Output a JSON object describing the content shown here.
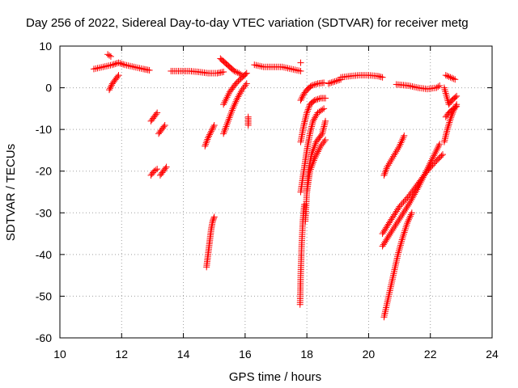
{
  "chart_data": {
    "type": "scatter",
    "title": "Day 256 of 2022, Sidereal Day-to-day VTEC variation (SDTVAR) for receiver metg",
    "xlabel": "GPS time / hours",
    "ylabel": "SDTVAR / TECUs",
    "xlim": [
      10,
      24
    ],
    "ylim": [
      -60,
      10
    ],
    "xticks": [
      10,
      12,
      14,
      16,
      18,
      20,
      22,
      24
    ],
    "yticks": [
      10,
      0,
      -10,
      -20,
      -30,
      -40,
      -50,
      -60
    ],
    "grid": true,
    "marker": "+",
    "color": "#ff0000",
    "segments": [
      {
        "name": "daytime-band-1",
        "points": [
          [
            11.1,
            4.5
          ],
          [
            11.4,
            5.0
          ],
          [
            11.7,
            5.5
          ],
          [
            11.9,
            6.0
          ],
          [
            12.1,
            5.5
          ],
          [
            12.4,
            5.0
          ],
          [
            12.7,
            4.5
          ],
          [
            12.9,
            4.2
          ]
        ]
      },
      {
        "name": "early-spike",
        "points": [
          [
            11.55,
            8.0
          ],
          [
            11.65,
            7.5
          ]
        ]
      },
      {
        "name": "early-dip",
        "points": [
          [
            11.6,
            -0.5
          ],
          [
            11.7,
            1.0
          ],
          [
            11.8,
            2.0
          ],
          [
            11.9,
            3.0
          ]
        ]
      },
      {
        "name": "arc-13a",
        "points": [
          [
            12.95,
            -8.0
          ],
          [
            13.05,
            -7.0
          ],
          [
            13.15,
            -6.0
          ]
        ]
      },
      {
        "name": "arc-13b",
        "points": [
          [
            13.2,
            -11.0
          ],
          [
            13.3,
            -10.0
          ],
          [
            13.4,
            -9.0
          ]
        ]
      },
      {
        "name": "arc-13c",
        "points": [
          [
            12.95,
            -21.0
          ],
          [
            13.05,
            -20.0
          ],
          [
            13.15,
            -19.5
          ]
        ]
      },
      {
        "name": "arc-13d",
        "points": [
          [
            13.25,
            -21.0
          ],
          [
            13.35,
            -20.0
          ],
          [
            13.45,
            -19.0
          ]
        ]
      },
      {
        "name": "daytime-band-2",
        "points": [
          [
            13.6,
            4.0
          ],
          [
            13.9,
            4.0
          ],
          [
            14.2,
            4.0
          ],
          [
            14.5,
            3.8
          ],
          [
            14.8,
            3.5
          ],
          [
            15.1,
            3.5
          ],
          [
            15.3,
            3.8
          ]
        ]
      },
      {
        "name": "arc-14.8a",
        "points": [
          [
            14.75,
            -43.0
          ],
          [
            14.8,
            -40.0
          ],
          [
            14.85,
            -37.0
          ],
          [
            14.9,
            -34.0
          ],
          [
            14.95,
            -32.0
          ],
          [
            15.0,
            -31.0
          ]
        ]
      },
      {
        "name": "arc-14.8b",
        "points": [
          [
            14.7,
            -14.0
          ],
          [
            14.8,
            -12.0
          ],
          [
            14.9,
            -10.5
          ],
          [
            15.0,
            -9.0
          ]
        ]
      },
      {
        "name": "arc-15.2",
        "points": [
          [
            15.2,
            7.0
          ],
          [
            15.35,
            6.0
          ],
          [
            15.5,
            5.0
          ],
          [
            15.65,
            4.0
          ],
          [
            15.8,
            3.5
          ],
          [
            15.9,
            3.0
          ]
        ]
      },
      {
        "name": "arc-15.3a",
        "points": [
          [
            15.3,
            -4.0
          ],
          [
            15.5,
            -1.0
          ],
          [
            15.7,
            1.0
          ],
          [
            15.9,
            2.5
          ],
          [
            16.05,
            3.5
          ]
        ]
      },
      {
        "name": "arc-15.3b",
        "points": [
          [
            15.3,
            -11.0
          ],
          [
            15.45,
            -8.0
          ],
          [
            15.6,
            -5.0
          ],
          [
            15.75,
            -2.5
          ],
          [
            15.9,
            -0.5
          ],
          [
            16.05,
            1.0
          ]
        ]
      },
      {
        "name": "dots-16.1",
        "points": [
          [
            16.1,
            -7.0
          ],
          [
            16.1,
            -9.0
          ]
        ]
      },
      {
        "name": "daytime-band-3",
        "points": [
          [
            16.3,
            5.5
          ],
          [
            16.6,
            5.0
          ],
          [
            16.9,
            5.0
          ],
          [
            17.2,
            5.0
          ],
          [
            17.5,
            4.5
          ],
          [
            17.8,
            4.0
          ]
        ]
      },
      {
        "name": "spike-17.8",
        "points": [
          [
            17.8,
            6.0
          ]
        ]
      },
      {
        "name": "arc-17.9a",
        "points": [
          [
            17.8,
            -3.0
          ],
          [
            17.9,
            -1.5
          ],
          [
            18.0,
            -0.5
          ],
          [
            18.15,
            0.5
          ],
          [
            18.35,
            1.0
          ],
          [
            18.55,
            1.2
          ]
        ]
      },
      {
        "name": "arc-17.9b",
        "points": [
          [
            17.8,
            -13.0
          ],
          [
            17.9,
            -9.0
          ],
          [
            18.0,
            -6.0
          ],
          [
            18.1,
            -4.0
          ],
          [
            18.25,
            -3.0
          ],
          [
            18.45,
            -2.5
          ],
          [
            18.6,
            -2.5
          ]
        ]
      },
      {
        "name": "arc-17.9c",
        "points": [
          [
            17.8,
            -25.0
          ],
          [
            17.9,
            -20.0
          ],
          [
            18.0,
            -15.0
          ],
          [
            18.1,
            -11.0
          ],
          [
            18.2,
            -8.0
          ],
          [
            18.35,
            -6.0
          ],
          [
            18.55,
            -5.0
          ]
        ]
      },
      {
        "name": "arc-17.8-deep",
        "points": [
          [
            17.78,
            -52.0
          ],
          [
            17.8,
            -45.0
          ],
          [
            17.83,
            -38.0
          ],
          [
            17.87,
            -32.0
          ],
          [
            17.92,
            -28.0
          ]
        ]
      },
      {
        "name": "arc-18.0",
        "points": [
          [
            17.95,
            -32.0
          ],
          [
            18.0,
            -25.0
          ],
          [
            18.05,
            -20.0
          ],
          [
            18.15,
            -16.0
          ],
          [
            18.3,
            -13.0
          ],
          [
            18.5,
            -11.0
          ],
          [
            18.6,
            -8.0
          ]
        ]
      },
      {
        "name": "arc-18.1",
        "points": [
          [
            18.0,
            -25.0
          ],
          [
            18.1,
            -20.0
          ],
          [
            18.25,
            -17.0
          ],
          [
            18.45,
            -14.0
          ],
          [
            18.6,
            -12.5
          ]
        ]
      },
      {
        "name": "daytime-band-4",
        "points": [
          [
            19.1,
            2.5
          ],
          [
            19.4,
            2.8
          ],
          [
            19.7,
            3.0
          ],
          [
            20.0,
            3.0
          ],
          [
            20.3,
            2.8
          ],
          [
            20.45,
            2.5
          ]
        ]
      },
      {
        "name": "arc-19.3",
        "points": [
          [
            18.7,
            1.0
          ],
          [
            18.9,
            1.5
          ],
          [
            19.1,
            2.0
          ]
        ]
      },
      {
        "name": "band-21",
        "points": [
          [
            20.9,
            0.8
          ],
          [
            21.3,
            0.5
          ],
          [
            21.6,
            0.0
          ],
          [
            21.9,
            -0.3
          ],
          [
            22.2,
            0.0
          ],
          [
            22.3,
            0.5
          ]
        ]
      },
      {
        "name": "arc-20.5a",
        "points": [
          [
            20.5,
            -21.0
          ],
          [
            20.6,
            -19.0
          ],
          [
            20.8,
            -16.5
          ],
          [
            21.0,
            -14.0
          ],
          [
            21.15,
            -11.5
          ]
        ]
      },
      {
        "name": "arc-20.5b",
        "points": [
          [
            20.45,
            -35.0
          ],
          [
            20.7,
            -32.0
          ],
          [
            21.0,
            -28.5
          ],
          [
            21.3,
            -26.0
          ],
          [
            21.6,
            -23.0
          ],
          [
            21.9,
            -20.0
          ],
          [
            22.2,
            -17.5
          ],
          [
            22.4,
            -16.0
          ]
        ]
      },
      {
        "name": "arc-20.5c",
        "points": [
          [
            20.45,
            -38.0
          ],
          [
            20.7,
            -35.0
          ],
          [
            21.0,
            -31.5
          ],
          [
            21.3,
            -28.0
          ],
          [
            21.6,
            -24.0
          ],
          [
            21.9,
            -19.5
          ],
          [
            22.2,
            -15.0
          ],
          [
            22.3,
            -13.5
          ]
        ]
      },
      {
        "name": "arc-20.5-deep",
        "points": [
          [
            20.5,
            -55.0
          ],
          [
            20.65,
            -50.0
          ],
          [
            20.8,
            -45.0
          ],
          [
            20.95,
            -40.0
          ],
          [
            21.1,
            -36.0
          ],
          [
            21.25,
            -32.5
          ],
          [
            21.4,
            -30.0
          ]
        ]
      },
      {
        "name": "arc-22.5a",
        "points": [
          [
            22.5,
            3.0
          ],
          [
            22.65,
            2.5
          ],
          [
            22.8,
            2.0
          ]
        ]
      },
      {
        "name": "arc-22.5b",
        "points": [
          [
            22.45,
            0.0
          ],
          [
            22.6,
            -4.0
          ],
          [
            22.7,
            -3.0
          ],
          [
            22.85,
            -2.0
          ]
        ]
      },
      {
        "name": "arc-22.5c",
        "points": [
          [
            22.45,
            -13.0
          ],
          [
            22.55,
            -10.0
          ],
          [
            22.65,
            -7.5
          ],
          [
            22.75,
            -5.5
          ],
          [
            22.85,
            -4.0
          ]
        ]
      },
      {
        "name": "arc-22.5d",
        "points": [
          [
            22.5,
            -7.0
          ],
          [
            22.6,
            -6.0
          ],
          [
            22.75,
            -5.0
          ],
          [
            22.85,
            -4.5
          ]
        ]
      }
    ]
  }
}
